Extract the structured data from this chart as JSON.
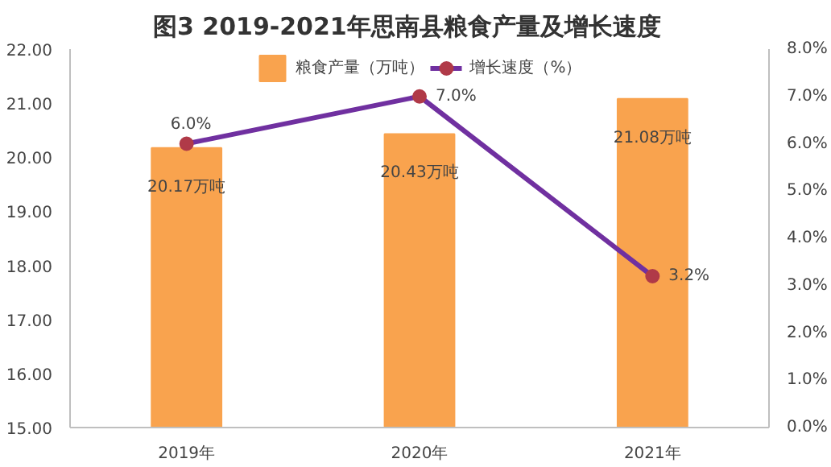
{
  "chart_data": {
    "type": "bar",
    "title": "图3    2019-2021年思南县粮食产量及增长速度",
    "categories": [
      "2019年",
      "2020年",
      "2021年"
    ],
    "series": [
      {
        "name": "粮食产量（万吨）",
        "color": "#f9a34e",
        "values": [
          20.17,
          20.43,
          21.08
        ],
        "value_labels": [
          "20.17万吨",
          "20.43万吨",
          "21.08万吨"
        ]
      },
      {
        "name": "增长速度（%）",
        "type": "line",
        "axis": "y2",
        "color": "#7030a0",
        "marker": "circle",
        "values": [
          6.0,
          7.0,
          3.2
        ],
        "value_labels": [
          "6.0%",
          "7.0%",
          "3.2%"
        ]
      }
    ],
    "ylim": [
      15,
      22
    ],
    "yticks": [
      {
        "value": 15,
        "label": "15.00"
      },
      {
        "value": 16,
        "label": "16.00"
      },
      {
        "value": 17,
        "label": "17.00"
      },
      {
        "value": 18,
        "label": "18.00"
      },
      {
        "value": 19,
        "label": "19.00"
      },
      {
        "value": 20,
        "label": "20.00"
      },
      {
        "value": 21,
        "label": "21.00"
      },
      {
        "value": 22,
        "label": "22.00"
      }
    ],
    "y2lim": [
      0,
      8
    ],
    "y2ticks": [
      {
        "value": 0,
        "label": "0.0%"
      },
      {
        "value": 1,
        "label": "1.0%"
      },
      {
        "value": 2,
        "label": "2.0%"
      },
      {
        "value": 3,
        "label": "3.0%"
      },
      {
        "value": 4,
        "label": "4.0%"
      },
      {
        "value": 5,
        "label": "5.0%"
      },
      {
        "value": 6,
        "label": "6.0%"
      },
      {
        "value": 7,
        "label": "7.0%"
      },
      {
        "value": 8,
        "label": "8.0%"
      }
    ],
    "legend": "top",
    "grid": false
  }
}
